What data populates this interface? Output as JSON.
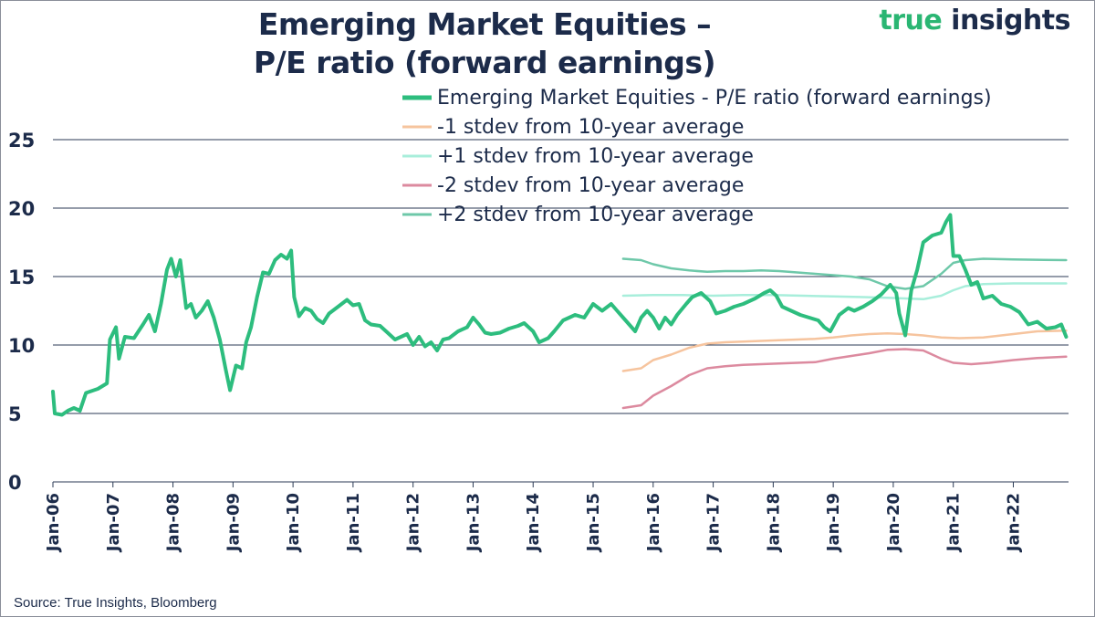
{
  "logo": {
    "part1": "true",
    "part2": " insights"
  },
  "source": "Source: True Insights, Bloomberg",
  "chart_data": {
    "type": "line",
    "title": [
      "Emerging Market Equities –",
      "P/E ratio (forward earnings)"
    ],
    "ylim": [
      0,
      27
    ],
    "yticks": [
      0,
      5,
      10,
      15,
      20,
      25
    ],
    "xlim": [
      2006.0,
      2022.92
    ],
    "xticks": [
      {
        "label": "Jan-06",
        "x": 2006
      },
      {
        "label": "Jan-07",
        "x": 2007
      },
      {
        "label": "Jan-08",
        "x": 2008
      },
      {
        "label": "Jan-09",
        "x": 2009
      },
      {
        "label": "Jan-10",
        "x": 2010
      },
      {
        "label": "Jan-11",
        "x": 2011
      },
      {
        "label": "Jan-12",
        "x": 2012
      },
      {
        "label": "Jan-13",
        "x": 2013
      },
      {
        "label": "Jan-14",
        "x": 2014
      },
      {
        "label": "Jan-15",
        "x": 2015
      },
      {
        "label": "Jan-16",
        "x": 2016
      },
      {
        "label": "Jan-17",
        "x": 2017
      },
      {
        "label": "Jan-18",
        "x": 2018
      },
      {
        "label": "Jan-19",
        "x": 2019
      },
      {
        "label": "Jan-20",
        "x": 2020
      },
      {
        "label": "Jan-21",
        "x": 2021
      },
      {
        "label": "Jan-22",
        "x": 2022
      }
    ],
    "grid": true,
    "legend_position": "top-right",
    "series": [
      {
        "name": "Emerging Market  Equities - P/E ratio (forward earnings)",
        "color": "#2dbd7e",
        "points": [
          [
            2006.0,
            6.6
          ],
          [
            2006.03,
            5.0
          ],
          [
            2006.15,
            4.9
          ],
          [
            2006.25,
            5.2
          ],
          [
            2006.35,
            5.4
          ],
          [
            2006.45,
            5.2
          ],
          [
            2006.55,
            6.5
          ],
          [
            2006.75,
            6.8
          ],
          [
            2006.9,
            7.2
          ],
          [
            2006.95,
            10.4
          ],
          [
            2007.05,
            11.3
          ],
          [
            2007.1,
            9.0
          ],
          [
            2007.2,
            10.6
          ],
          [
            2007.35,
            10.5
          ],
          [
            2007.5,
            11.5
          ],
          [
            2007.6,
            12.2
          ],
          [
            2007.7,
            11.0
          ],
          [
            2007.8,
            13.0
          ],
          [
            2007.9,
            15.5
          ],
          [
            2007.97,
            16.3
          ],
          [
            2008.05,
            15.0
          ],
          [
            2008.12,
            16.2
          ],
          [
            2008.22,
            12.7
          ],
          [
            2008.3,
            13.0
          ],
          [
            2008.38,
            12.0
          ],
          [
            2008.48,
            12.5
          ],
          [
            2008.58,
            13.2
          ],
          [
            2008.68,
            12.0
          ],
          [
            2008.78,
            10.4
          ],
          [
            2008.88,
            8.2
          ],
          [
            2008.95,
            6.7
          ],
          [
            2009.05,
            8.5
          ],
          [
            2009.15,
            8.3
          ],
          [
            2009.22,
            10.2
          ],
          [
            2009.3,
            11.3
          ],
          [
            2009.4,
            13.5
          ],
          [
            2009.5,
            15.3
          ],
          [
            2009.6,
            15.2
          ],
          [
            2009.7,
            16.2
          ],
          [
            2009.8,
            16.6
          ],
          [
            2009.9,
            16.3
          ],
          [
            2009.97,
            16.9
          ],
          [
            2010.02,
            13.5
          ],
          [
            2010.1,
            12.1
          ],
          [
            2010.2,
            12.7
          ],
          [
            2010.3,
            12.5
          ],
          [
            2010.4,
            11.9
          ],
          [
            2010.5,
            11.6
          ],
          [
            2010.6,
            12.3
          ],
          [
            2010.75,
            12.8
          ],
          [
            2010.9,
            13.3
          ],
          [
            2011.0,
            12.9
          ],
          [
            2011.1,
            13.0
          ],
          [
            2011.2,
            11.8
          ],
          [
            2011.3,
            11.5
          ],
          [
            2011.45,
            11.4
          ],
          [
            2011.55,
            11.0
          ],
          [
            2011.7,
            10.4
          ],
          [
            2011.8,
            10.6
          ],
          [
            2011.9,
            10.8
          ],
          [
            2012.0,
            10.0
          ],
          [
            2012.1,
            10.6
          ],
          [
            2012.2,
            9.9
          ],
          [
            2012.3,
            10.2
          ],
          [
            2012.4,
            9.6
          ],
          [
            2012.5,
            10.4
          ],
          [
            2012.6,
            10.5
          ],
          [
            2012.75,
            11.0
          ],
          [
            2012.9,
            11.3
          ],
          [
            2013.0,
            12.0
          ],
          [
            2013.1,
            11.5
          ],
          [
            2013.2,
            10.9
          ],
          [
            2013.3,
            10.8
          ],
          [
            2013.45,
            10.9
          ],
          [
            2013.6,
            11.2
          ],
          [
            2013.75,
            11.4
          ],
          [
            2013.85,
            11.6
          ],
          [
            2014.0,
            11.0
          ],
          [
            2014.1,
            10.2
          ],
          [
            2014.25,
            10.5
          ],
          [
            2014.35,
            11.0
          ],
          [
            2014.5,
            11.8
          ],
          [
            2014.6,
            12.0
          ],
          [
            2014.7,
            12.2
          ],
          [
            2014.85,
            12.0
          ],
          [
            2015.0,
            13.0
          ],
          [
            2015.15,
            12.5
          ],
          [
            2015.3,
            13.0
          ],
          [
            2015.4,
            12.5
          ],
          [
            2015.5,
            12.0
          ],
          [
            2015.6,
            11.5
          ],
          [
            2015.7,
            11.0
          ],
          [
            2015.8,
            12.0
          ],
          [
            2015.9,
            12.5
          ],
          [
            2016.0,
            12.0
          ],
          [
            2016.1,
            11.2
          ],
          [
            2016.2,
            12.0
          ],
          [
            2016.3,
            11.5
          ],
          [
            2016.4,
            12.2
          ],
          [
            2016.55,
            13.0
          ],
          [
            2016.65,
            13.5
          ],
          [
            2016.8,
            13.8
          ],
          [
            2016.95,
            13.2
          ],
          [
            2017.05,
            12.3
          ],
          [
            2017.2,
            12.5
          ],
          [
            2017.35,
            12.8
          ],
          [
            2017.5,
            13.0
          ],
          [
            2017.7,
            13.4
          ],
          [
            2017.85,
            13.8
          ],
          [
            2017.95,
            14.0
          ],
          [
            2018.05,
            13.6
          ],
          [
            2018.15,
            12.8
          ],
          [
            2018.3,
            12.5
          ],
          [
            2018.45,
            12.2
          ],
          [
            2018.6,
            12.0
          ],
          [
            2018.75,
            11.8
          ],
          [
            2018.85,
            11.3
          ],
          [
            2018.95,
            11.0
          ],
          [
            2019.1,
            12.2
          ],
          [
            2019.25,
            12.7
          ],
          [
            2019.35,
            12.5
          ],
          [
            2019.5,
            12.8
          ],
          [
            2019.65,
            13.2
          ],
          [
            2019.8,
            13.7
          ],
          [
            2019.95,
            14.4
          ],
          [
            2020.05,
            13.8
          ],
          [
            2020.1,
            12.3
          ],
          [
            2020.2,
            10.7
          ],
          [
            2020.3,
            14.0
          ],
          [
            2020.4,
            15.5
          ],
          [
            2020.5,
            17.5
          ],
          [
            2020.65,
            18.0
          ],
          [
            2020.8,
            18.2
          ],
          [
            2020.88,
            19.0
          ],
          [
            2020.95,
            19.5
          ],
          [
            2021.0,
            16.5
          ],
          [
            2021.1,
            16.5
          ],
          [
            2021.2,
            15.5
          ],
          [
            2021.3,
            14.4
          ],
          [
            2021.4,
            14.6
          ],
          [
            2021.5,
            13.4
          ],
          [
            2021.65,
            13.6
          ],
          [
            2021.8,
            13.0
          ],
          [
            2021.95,
            12.8
          ],
          [
            2022.1,
            12.4
          ],
          [
            2022.25,
            11.5
          ],
          [
            2022.4,
            11.7
          ],
          [
            2022.55,
            11.2
          ],
          [
            2022.7,
            11.3
          ],
          [
            2022.8,
            11.5
          ],
          [
            2022.88,
            10.6
          ]
        ]
      },
      {
        "name": "-1 stdev from 10-year average",
        "color": "#f6c49e",
        "points": [
          [
            2015.5,
            8.1
          ],
          [
            2015.8,
            8.3
          ],
          [
            2016.0,
            8.9
          ],
          [
            2016.3,
            9.3
          ],
          [
            2016.6,
            9.8
          ],
          [
            2016.9,
            10.1
          ],
          [
            2017.2,
            10.2
          ],
          [
            2017.5,
            10.25
          ],
          [
            2017.8,
            10.3
          ],
          [
            2018.1,
            10.35
          ],
          [
            2018.4,
            10.4
          ],
          [
            2018.7,
            10.45
          ],
          [
            2019.0,
            10.55
          ],
          [
            2019.3,
            10.7
          ],
          [
            2019.6,
            10.8
          ],
          [
            2019.9,
            10.85
          ],
          [
            2020.2,
            10.8
          ],
          [
            2020.5,
            10.7
          ],
          [
            2020.8,
            10.55
          ],
          [
            2021.1,
            10.5
          ],
          [
            2021.5,
            10.55
          ],
          [
            2021.8,
            10.7
          ],
          [
            2022.1,
            10.85
          ],
          [
            2022.4,
            11.0
          ],
          [
            2022.88,
            11.05
          ]
        ]
      },
      {
        "name": "+1 stdev from 10-year average",
        "color": "#a8eedb",
        "points": [
          [
            2015.5,
            13.6
          ],
          [
            2016.0,
            13.65
          ],
          [
            2016.5,
            13.65
          ],
          [
            2017.0,
            13.6
          ],
          [
            2017.5,
            13.65
          ],
          [
            2018.0,
            13.65
          ],
          [
            2018.5,
            13.6
          ],
          [
            2019.0,
            13.55
          ],
          [
            2019.5,
            13.5
          ],
          [
            2019.9,
            13.45
          ],
          [
            2020.2,
            13.4
          ],
          [
            2020.5,
            13.35
          ],
          [
            2020.8,
            13.6
          ],
          [
            2021.0,
            14.0
          ],
          [
            2021.2,
            14.3
          ],
          [
            2021.5,
            14.45
          ],
          [
            2022.0,
            14.5
          ],
          [
            2022.88,
            14.5
          ]
        ]
      },
      {
        "name": "-2 stdev from 10-year average",
        "color": "#dc8a9f",
        "points": [
          [
            2015.5,
            5.4
          ],
          [
            2015.8,
            5.6
          ],
          [
            2016.0,
            6.3
          ],
          [
            2016.3,
            7.0
          ],
          [
            2016.6,
            7.8
          ],
          [
            2016.9,
            8.3
          ],
          [
            2017.2,
            8.45
          ],
          [
            2017.5,
            8.55
          ],
          [
            2017.8,
            8.6
          ],
          [
            2018.1,
            8.65
          ],
          [
            2018.4,
            8.7
          ],
          [
            2018.7,
            8.75
          ],
          [
            2019.0,
            9.0
          ],
          [
            2019.3,
            9.2
          ],
          [
            2019.6,
            9.4
          ],
          [
            2019.9,
            9.65
          ],
          [
            2020.2,
            9.7
          ],
          [
            2020.5,
            9.6
          ],
          [
            2020.8,
            9.0
          ],
          [
            2021.0,
            8.7
          ],
          [
            2021.3,
            8.6
          ],
          [
            2021.6,
            8.7
          ],
          [
            2022.0,
            8.9
          ],
          [
            2022.4,
            9.05
          ],
          [
            2022.88,
            9.15
          ]
        ]
      },
      {
        "name": "+2 stdev from 10-year average",
        "color": "#6ec8a9",
        "points": [
          [
            2015.5,
            16.3
          ],
          [
            2015.8,
            16.2
          ],
          [
            2016.0,
            15.9
          ],
          [
            2016.3,
            15.6
          ],
          [
            2016.6,
            15.45
          ],
          [
            2016.9,
            15.35
          ],
          [
            2017.2,
            15.4
          ],
          [
            2017.5,
            15.4
          ],
          [
            2017.8,
            15.45
          ],
          [
            2018.1,
            15.4
          ],
          [
            2018.4,
            15.3
          ],
          [
            2018.7,
            15.2
          ],
          [
            2019.0,
            15.1
          ],
          [
            2019.3,
            15.0
          ],
          [
            2019.6,
            14.8
          ],
          [
            2019.9,
            14.3
          ],
          [
            2020.2,
            14.1
          ],
          [
            2020.5,
            14.3
          ],
          [
            2020.8,
            15.2
          ],
          [
            2021.0,
            16.0
          ],
          [
            2021.2,
            16.2
          ],
          [
            2021.5,
            16.3
          ],
          [
            2022.0,
            16.25
          ],
          [
            2022.88,
            16.2
          ]
        ]
      }
    ]
  }
}
